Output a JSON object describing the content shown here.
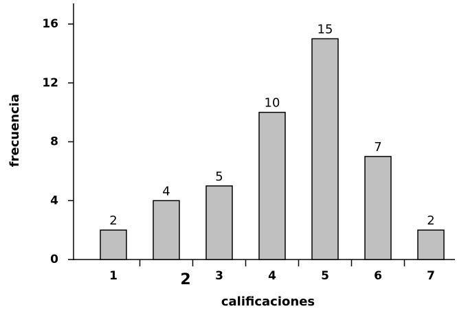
{
  "chart_data": {
    "type": "bar",
    "x_label": "calificaciones",
    "y_label": "frecuencia",
    "categories": [
      "1",
      "2",
      "3",
      "4",
      "5",
      "6",
      "7"
    ],
    "values": [
      2,
      4,
      5,
      10,
      15,
      7,
      2
    ],
    "color": "#c0c0c0",
    "ylim": [
      0,
      17.4
    ],
    "yticks": [
      0,
      4,
      8,
      12,
      16
    ],
    "grid": false
  }
}
